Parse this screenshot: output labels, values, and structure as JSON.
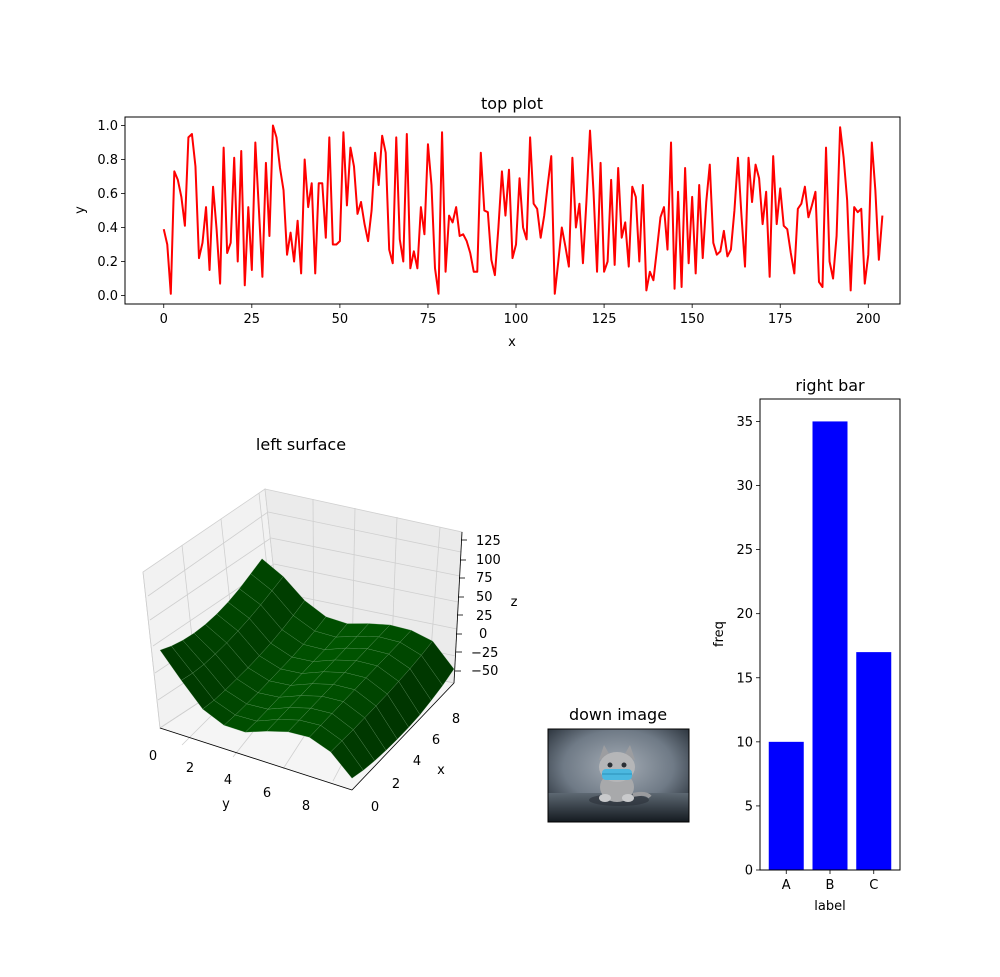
{
  "chart_data": [
    {
      "type": "line",
      "title": "top plot",
      "xlabel": "x",
      "ylabel": "y",
      "xlim": [
        -11,
        209
      ],
      "ylim": [
        -0.05,
        1.05
      ],
      "xticks": [
        0,
        25,
        50,
        75,
        100,
        125,
        150,
        175,
        200
      ],
      "yticks": [
        0.0,
        0.2,
        0.4,
        0.6,
        0.8,
        1.0
      ],
      "xtick_labels": [
        "0",
        "25",
        "50",
        "75",
        "100",
        "125",
        "150",
        "175",
        "200"
      ],
      "ytick_labels": [
        "0.0",
        "0.2",
        "0.4",
        "0.6",
        "0.8",
        "1.0"
      ],
      "grid": false,
      "color": "#ff0000",
      "series": [
        {
          "x_start": 0,
          "x_step": 1,
          "values": [
            0.39,
            0.3,
            0.01,
            0.73,
            0.68,
            0.58,
            0.41,
            0.93,
            0.95,
            0.76,
            0.22,
            0.31,
            0.52,
            0.15,
            0.64,
            0.39,
            0.07,
            0.87,
            0.25,
            0.31,
            0.81,
            0.2,
            0.85,
            0.06,
            0.52,
            0.15,
            0.9,
            0.51,
            0.11,
            0.78,
            0.35,
            1.0,
            0.93,
            0.75,
            0.62,
            0.24,
            0.37,
            0.2,
            0.44,
            0.13,
            0.8,
            0.52,
            0.66,
            0.13,
            0.66,
            0.66,
            0.34,
            0.93,
            0.3,
            0.3,
            0.32,
            0.96,
            0.53,
            0.87,
            0.76,
            0.48,
            0.55,
            0.42,
            0.32,
            0.5,
            0.84,
            0.65,
            0.94,
            0.84,
            0.27,
            0.19,
            0.93,
            0.33,
            0.2,
            0.95,
            0.16,
            0.26,
            0.16,
            0.52,
            0.36,
            0.89,
            0.65,
            0.16,
            0.01,
            0.96,
            0.14,
            0.47,
            0.43,
            0.52,
            0.35,
            0.36,
            0.32,
            0.25,
            0.14,
            0.14,
            0.84,
            0.5,
            0.49,
            0.21,
            0.12,
            0.4,
            0.73,
            0.47,
            0.74,
            0.22,
            0.3,
            0.69,
            0.4,
            0.33,
            0.93,
            0.54,
            0.51,
            0.34,
            0.47,
            0.65,
            0.82,
            0.01,
            0.2,
            0.4,
            0.29,
            0.17,
            0.81,
            0.4,
            0.54,
            0.19,
            0.56,
            0.97,
            0.61,
            0.14,
            0.78,
            0.14,
            0.2,
            0.68,
            0.18,
            0.75,
            0.34,
            0.43,
            0.17,
            0.64,
            0.58,
            0.2,
            0.65,
            0.03,
            0.14,
            0.09,
            0.27,
            0.46,
            0.52,
            0.27,
            0.9,
            0.04,
            0.61,
            0.05,
            0.75,
            0.19,
            0.58,
            0.13,
            0.65,
            0.22,
            0.55,
            0.77,
            0.31,
            0.24,
            0.26,
            0.38,
            0.23,
            0.27,
            0.5,
            0.81,
            0.47,
            0.17,
            0.81,
            0.55,
            0.77,
            0.69,
            0.42,
            0.61,
            0.11,
            0.82,
            0.42,
            0.63,
            0.41,
            0.39,
            0.25,
            0.13,
            0.51,
            0.54,
            0.64,
            0.46,
            0.53,
            0.61,
            0.08,
            0.05,
            0.87,
            0.2,
            0.1,
            0.35,
            0.99,
            0.81,
            0.56,
            0.03,
            0.52,
            0.49,
            0.51,
            0.07,
            0.24,
            0.9,
            0.62,
            0.21,
            0.47
          ]
        }
      ]
    },
    {
      "type": "surface",
      "title": "left surface",
      "xlabel": "x",
      "ylabel": "y",
      "zlabel": "z",
      "x_range": [
        0,
        9
      ],
      "y_range": [
        0,
        9
      ],
      "z_range": [
        -60,
        130
      ],
      "xtick_labels": [
        "0",
        "2",
        "4",
        "6",
        "8"
      ],
      "ytick_labels": [
        "0",
        "2",
        "4",
        "6",
        "8"
      ],
      "ztick_labels": [
        "−50",
        "−25",
        "0",
        "25",
        "50",
        "75",
        "100",
        "125"
      ],
      "color": "#004d00",
      "grid_values": [
        [
          40,
          30,
          22,
          16,
          12,
          10,
          10,
          12,
          16,
          20
        ],
        [
          10,
          4,
          0,
          -2,
          -3,
          -3,
          -2,
          0,
          3,
          6
        ],
        [
          -18,
          -22,
          -24,
          -25,
          -26,
          -26,
          -25,
          -23,
          -20,
          -16
        ],
        [
          -30,
          -32,
          -33,
          -34,
          -34,
          -34,
          -34,
          -33,
          -31,
          -28
        ],
        [
          -30,
          -31,
          -31,
          -31,
          -31,
          -31,
          -31,
          -31,
          -30,
          -28
        ],
        [
          -20,
          -20,
          -20,
          -20,
          -20,
          -20,
          -20,
          -20,
          -20,
          -19
        ],
        [
          -12,
          -12,
          -12,
          -12,
          -12,
          -12,
          -12,
          -12,
          -12,
          -12
        ],
        [
          -10,
          -10,
          -10,
          -10,
          -10,
          -10,
          -10,
          -10,
          -10,
          -10
        ],
        [
          -20,
          -21,
          -22,
          -22,
          -22,
          -22,
          -21,
          -20,
          -18,
          -15
        ],
        [
          -45,
          -50,
          -53,
          -55,
          -56,
          -56,
          -55,
          -52,
          -48,
          -42
        ]
      ]
    },
    {
      "type": "image",
      "title": "down image"
    },
    {
      "type": "bar",
      "title": "right bar",
      "xlabel": "label",
      "ylabel": "freq",
      "categories": [
        "A",
        "B",
        "C"
      ],
      "values": [
        10,
        35,
        17
      ],
      "ylim": [
        0,
        36.75
      ],
      "yticks": [
        0,
        5,
        10,
        15,
        20,
        25,
        30,
        35
      ],
      "ytick_labels": [
        "0",
        "5",
        "10",
        "15",
        "20",
        "25",
        "30",
        "35"
      ],
      "color": "#0000ff"
    }
  ]
}
